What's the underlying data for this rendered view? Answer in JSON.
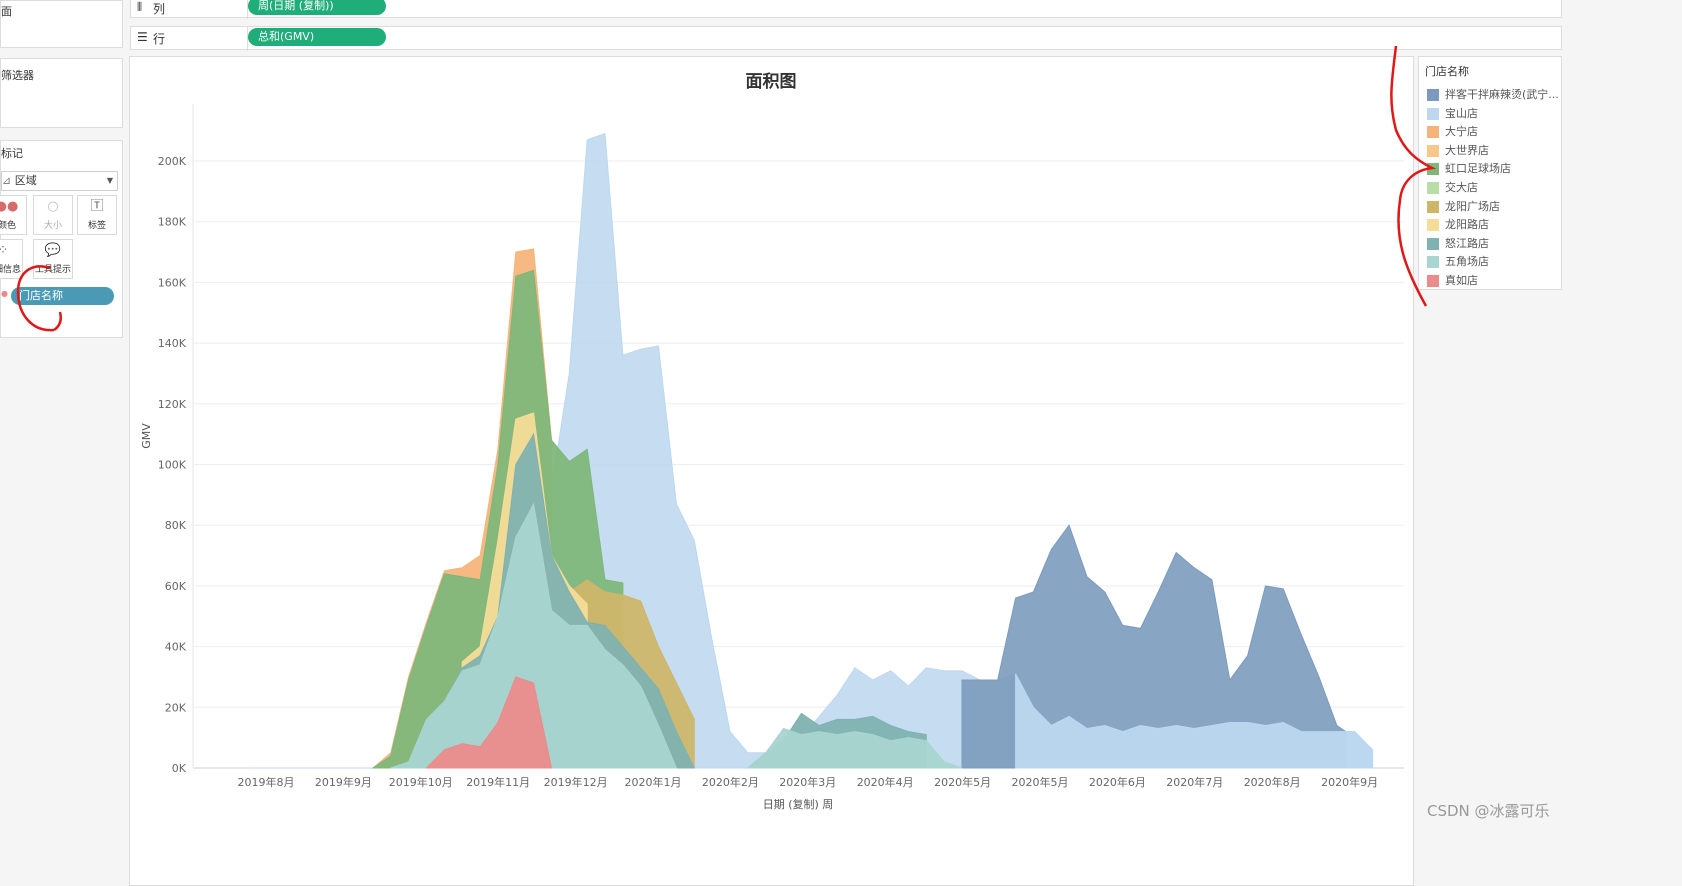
{
  "left_panel": {
    "top_label": "面",
    "filters_label": "筛选器",
    "marks_label": "标记",
    "mark_type": "区域",
    "buttons": [
      {
        "label": "颜色",
        "icon": "color-dots-icon"
      },
      {
        "label": "大小",
        "icon": "size-icon"
      },
      {
        "label": "标签",
        "icon": "label-icon"
      },
      {
        "label": "详细信息",
        "icon": "detail-icon"
      },
      {
        "label": "工具提示",
        "icon": "tooltip-icon"
      }
    ],
    "color_field": "门店名称"
  },
  "shelves": {
    "columns_label": "列",
    "columns_pill": "周(日期 (复制))",
    "rows_label": "行",
    "rows_pill": "总和(GMV)"
  },
  "chart_data": {
    "type": "area",
    "title": "面积图",
    "xlabel": "日期 (复制) 周",
    "ylabel": "GMV",
    "ylim": [
      0,
      220000
    ],
    "yticks": [
      "0K",
      "20K",
      "40K",
      "60K",
      "80K",
      "100K",
      "120K",
      "140K",
      "160K",
      "180K",
      "200K"
    ],
    "xticks": [
      "2019年8月",
      "2019年9月",
      "2019年10月",
      "2019年11月",
      "2019年12月",
      "2020年1月",
      "2020年2月",
      "2020年3月",
      "2020年4月",
      "2020年5月",
      "2020年5月",
      "2020年6月",
      "2020年7月",
      "2020年8月",
      "2020年9月"
    ],
    "legend_title": "门店名称",
    "legend_position": "right",
    "series": [
      {
        "name": "拌客干拌麻辣烫(武宁...",
        "color": "#7b9bbd"
      },
      {
        "name": "宝山店",
        "color": "#bcd7ef"
      },
      {
        "name": "大宁店",
        "color": "#f5b57a"
      },
      {
        "name": "大世界店",
        "color": "#f7c88a"
      },
      {
        "name": "虹口足球场店",
        "color": "#7fb77a"
      },
      {
        "name": "交大店",
        "color": "#b9dda7"
      },
      {
        "name": "龙阳广场店",
        "color": "#cdb66a"
      },
      {
        "name": "龙阳路店",
        "color": "#f5dc98"
      },
      {
        "name": "怒江路店",
        "color": "#7fb2b0"
      },
      {
        "name": "五角场店",
        "color": "#a8d5cf"
      },
      {
        "name": "真如店",
        "color": "#eb8b8b"
      }
    ],
    "stores_data": {
      "拌客干拌麻辣烫(武宁...": {
        "x": [
          "2020年5月",
          "2020年5月",
          "2020年5月",
          "2020年6月",
          "2020年6月",
          "2020年6月",
          "2020年7月",
          "2020年7月",
          "2020年7月",
          "2020年8月",
          "2020年8月",
          "2020年9月"
        ],
        "y": [
          30000,
          57000,
          80000,
          62000,
          47000,
          46000,
          71000,
          62000,
          29000,
          60000,
          44000,
          16000
        ]
      },
      "宝山店": {
        "x": [
          "2019年10月",
          "2019年11月",
          "2019年11月",
          "2019年12月",
          "2019年12月",
          "2020年1月",
          "2020年1月",
          "2020年2月",
          "2020年3月",
          "2020年4月",
          "2020年5月",
          "2020年6月",
          "2020年9月"
        ],
        "y": [
          65000,
          92000,
          209000,
          136000,
          139000,
          88000,
          40000,
          5000,
          33000,
          33000,
          29000,
          13000,
          6000
        ]
      },
      "虹口足球场店": {
        "x": [
          "2019年10月",
          "2019年11月",
          "2019年11月",
          "2019年12月",
          "2019年12月"
        ],
        "y": [
          64000,
          98000,
          164000,
          101000,
          105000
        ]
      },
      "五角场店": {
        "x": [
          "2019年10月",
          "2019年11月",
          "2019年11月",
          "2019年12月",
          "2020年1月"
        ],
        "y": [
          32000,
          50000,
          87000,
          47000,
          27000
        ]
      },
      "真如店": {
        "x": [
          "2019年10月",
          "2019年11月",
          "2019年11月",
          "2019年12月"
        ],
        "y": [
          6000,
          16000,
          30000,
          0
        ]
      }
    }
  },
  "watermark": "CSDN @冰露可乐"
}
